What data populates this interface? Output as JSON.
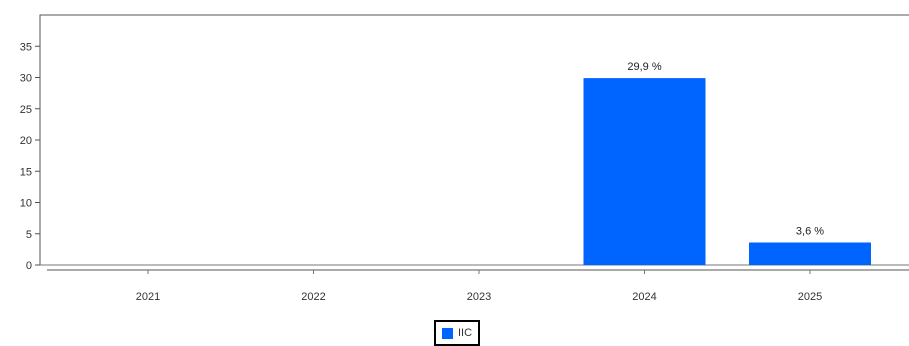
{
  "chart_data": {
    "type": "bar",
    "categories": [
      "2021",
      "2022",
      "2023",
      "2024",
      "2025"
    ],
    "series": [
      {
        "name": "IIC",
        "values": [
          null,
          null,
          null,
          29.9,
          3.6
        ],
        "color": "#0064ff"
      }
    ],
    "data_labels": [
      "",
      "",
      "",
      "29,9 %",
      "3,6 %"
    ],
    "yticks": [
      "0",
      "5",
      "10",
      "15",
      "20",
      "25",
      "30",
      "35"
    ],
    "ylim": [
      0,
      40
    ],
    "title": "",
    "xlabel": "",
    "ylabel": "",
    "grid": false,
    "legend_position": "bottom-center"
  },
  "legend": {
    "label": "IIC",
    "color": "#0064ff"
  }
}
